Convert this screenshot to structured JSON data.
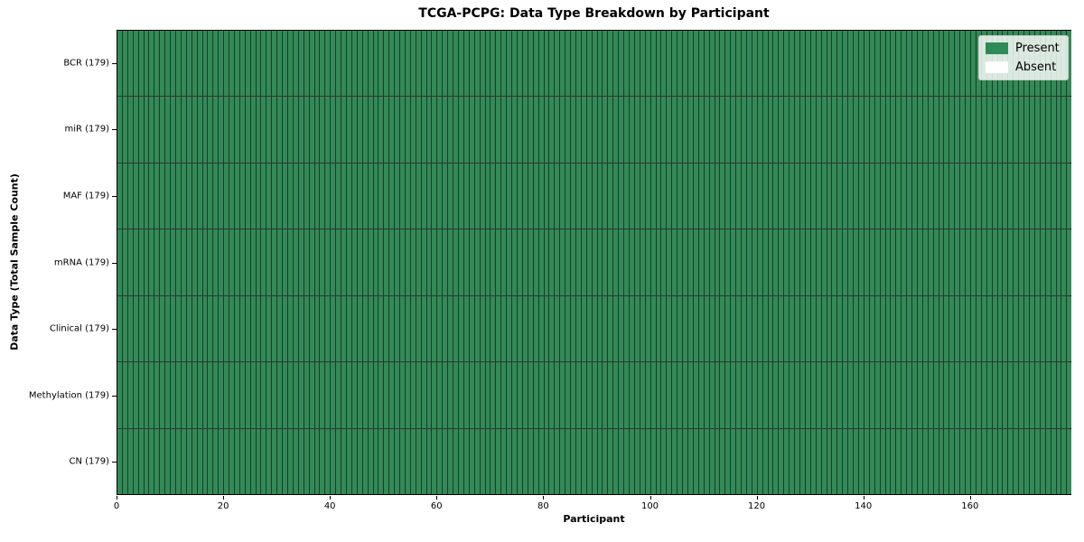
{
  "chart_data": {
    "type": "heatmap",
    "title": "TCGA-PCPG: Data Type Breakdown by Participant",
    "xlabel": "Participant",
    "ylabel": "Data Type (Total Sample Count)",
    "n_participants": 179,
    "x_ticks": [
      0,
      20,
      40,
      60,
      80,
      100,
      120,
      140,
      160
    ],
    "rows": [
      {
        "label": "BCR (179)",
        "data_type": "BCR",
        "total_samples": 179,
        "present_count": 179
      },
      {
        "label": "miR (179)",
        "data_type": "miR",
        "total_samples": 179,
        "present_count": 179
      },
      {
        "label": "MAF (179)",
        "data_type": "MAF",
        "total_samples": 179,
        "present_count": 179
      },
      {
        "label": "mRNA (179)",
        "data_type": "mRNA",
        "total_samples": 179,
        "present_count": 179
      },
      {
        "label": "Clinical (179)",
        "data_type": "Clinical",
        "total_samples": 179,
        "present_count": 179
      },
      {
        "label": "Methylation (179)",
        "data_type": "Methylation",
        "total_samples": 179,
        "present_count": 179
      },
      {
        "label": "CN (179)",
        "data_type": "CN",
        "total_samples": 179,
        "present_count": 179
      }
    ],
    "legend": [
      {
        "label": "Present",
        "color": "#2e8b57"
      },
      {
        "label": "Absent",
        "color": "#ffffff"
      }
    ],
    "colors": {
      "present": "#338a57",
      "absent": "#ffffff",
      "cell_edge": "rgba(0,0,0,0.55)",
      "frame": "#000000"
    },
    "legend_position": "upper right",
    "axis_ranges": {
      "x": [
        0,
        179
      ],
      "y_rows": 7
    }
  }
}
